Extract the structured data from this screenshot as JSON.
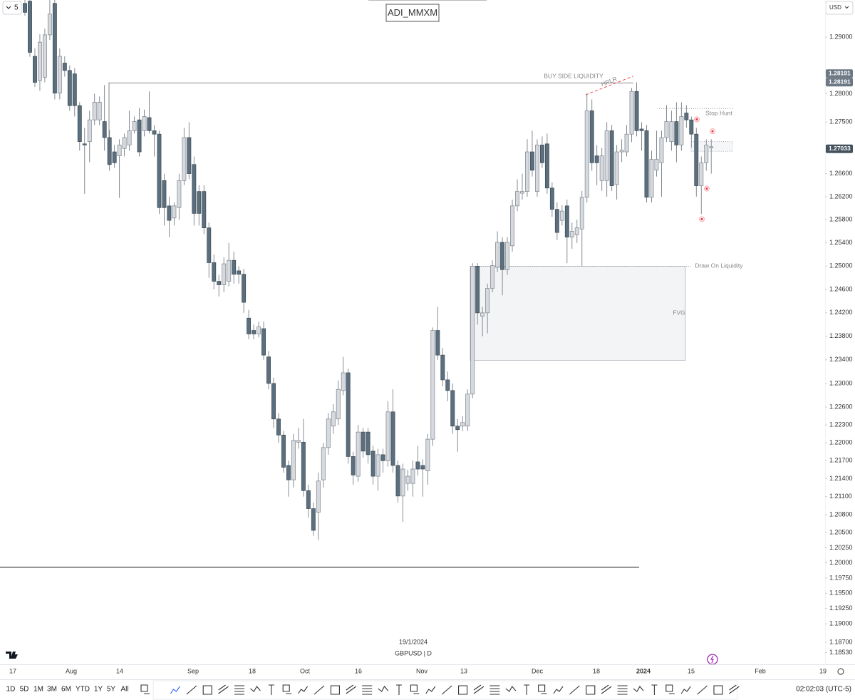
{
  "ui": {
    "interval": "5",
    "title": "ADI_MMXM",
    "currency": "USD",
    "date": "19/1/2024",
    "symbol": "GBPUSD | D",
    "ranges": [
      "1D",
      "5D",
      "1M",
      "3M",
      "6M",
      "YTD",
      "1Y",
      "5Y",
      "All"
    ],
    "clock": "02:02:03 (UTC-5)"
  },
  "chart_data": {
    "type": "candlestick",
    "log": true,
    "ylim": [
      1.1835,
      1.2966
    ],
    "yticks": [
      {
        "value": 1.29,
        "label": "1.29000"
      },
      {
        "value": 1.28,
        "label": "1.28000"
      },
      {
        "value": 1.275,
        "label": "1.27500"
      },
      {
        "value": 1.266,
        "label": "1.26600"
      },
      {
        "value": 1.262,
        "label": "1.26200"
      },
      {
        "value": 1.258,
        "label": "1.25800"
      },
      {
        "value": 1.254,
        "label": "1.25400"
      },
      {
        "value": 1.25,
        "label": "1.25000"
      },
      {
        "value": 1.246,
        "label": "1.24600"
      },
      {
        "value": 1.242,
        "label": "1.24200"
      },
      {
        "value": 1.238,
        "label": "1.23800"
      },
      {
        "value": 1.234,
        "label": "1.23400"
      },
      {
        "value": 1.23,
        "label": "1.23000"
      },
      {
        "value": 1.226,
        "label": "1.22600"
      },
      {
        "value": 1.223,
        "label": "1.22300"
      },
      {
        "value": 1.22,
        "label": "1.22000"
      },
      {
        "value": 1.217,
        "label": "1.21700"
      },
      {
        "value": 1.214,
        "label": "1.21400"
      },
      {
        "value": 1.211,
        "label": "1.21100"
      },
      {
        "value": 1.208,
        "label": "1.20800"
      },
      {
        "value": 1.205,
        "label": "1.20500"
      },
      {
        "value": 1.2025,
        "label": "1.20250"
      },
      {
        "value": 1.2,
        "label": "1.20000"
      },
      {
        "value": 1.1975,
        "label": "1.19750"
      },
      {
        "value": 1.195,
        "label": "1.19500"
      },
      {
        "value": 1.1925,
        "label": "1.19250"
      },
      {
        "value": 1.19,
        "label": "1.19000"
      },
      {
        "value": 1.187,
        "label": "1.18700"
      },
      {
        "value": 1.1853,
        "label": "1.18530"
      }
    ],
    "price_labels": [
      1.28191,
      1.28191,
      1.27033
    ],
    "xlabels": [
      "17",
      "Aug",
      "14",
      "Sep",
      "18",
      "Oct",
      "16",
      "Nov",
      "13",
      "Dec",
      "18",
      "2024",
      "15",
      "Feb",
      "19"
    ],
    "colors": {
      "up": "#d6d9de",
      "down": "#5b6f7e"
    },
    "ohlc": [
      [
        1.296,
        1.2966,
        1.2938,
        1.2944
      ],
      [
        1.2964,
        1.2966,
        1.2865,
        1.2873
      ],
      [
        1.2866,
        1.288,
        1.2812,
        1.282
      ],
      [
        1.2823,
        1.2905,
        1.2805,
        1.2891
      ],
      [
        1.2829,
        1.2915,
        1.282,
        1.2904
      ],
      [
        1.2904,
        1.2966,
        1.2895,
        1.2941
      ],
      [
        1.296,
        1.2966,
        1.279,
        1.2801
      ],
      [
        1.2801,
        1.288,
        1.279,
        1.2866
      ],
      [
        1.2854,
        1.2866,
        1.283,
        1.2841
      ],
      [
        1.2841,
        1.285,
        1.277,
        1.2779
      ],
      [
        1.2835,
        1.2845,
        1.276,
        1.2779
      ],
      [
        1.2779,
        1.2785,
        1.27,
        1.2716
      ],
      [
        1.2712,
        1.274,
        1.2625,
        1.271
      ],
      [
        1.2716,
        1.277,
        1.268,
        1.2754
      ],
      [
        1.2754,
        1.28,
        1.2745,
        1.2785
      ],
      [
        1.2754,
        1.2795,
        1.2745,
        1.2785
      ],
      [
        1.2751,
        1.2815,
        1.27,
        1.2723
      ],
      [
        1.2723,
        1.2736,
        1.2665,
        1.2676
      ],
      [
        1.2698,
        1.271,
        1.267,
        1.2679
      ],
      [
        1.2691,
        1.272,
        1.2618,
        1.271
      ],
      [
        1.2704,
        1.273,
        1.269,
        1.2723
      ],
      [
        1.271,
        1.277,
        1.27,
        1.2735
      ],
      [
        1.2735,
        1.276,
        1.273,
        1.2751
      ],
      [
        1.2754,
        1.2775,
        1.269,
        1.2698
      ],
      [
        1.2735,
        1.2772,
        1.2725,
        1.276
      ],
      [
        1.2758,
        1.2804,
        1.273,
        1.2735
      ],
      [
        1.2735,
        1.2745,
        1.269,
        1.2729
      ],
      [
        1.2729,
        1.2735,
        1.259,
        1.2601
      ],
      [
        1.2648,
        1.266,
        1.257,
        1.2601
      ],
      [
        1.2604,
        1.262,
        1.255,
        1.2579
      ],
      [
        1.2583,
        1.261,
        1.257,
        1.2604
      ],
      [
        1.2601,
        1.266,
        1.258,
        1.2648
      ],
      [
        1.2648,
        1.274,
        1.264,
        1.2723
      ],
      [
        1.2723,
        1.275,
        1.265,
        1.266
      ],
      [
        1.2676,
        1.269,
        1.257,
        1.2591
      ],
      [
        1.2629,
        1.264,
        1.257,
        1.2591
      ],
      [
        1.2629,
        1.264,
        1.2555,
        1.2566
      ],
      [
        1.2566,
        1.2575,
        1.248,
        1.2506
      ],
      [
        1.2506,
        1.252,
        1.246,
        1.2474
      ],
      [
        1.2474,
        1.2485,
        1.2448,
        1.2468
      ],
      [
        1.2468,
        1.2515,
        1.2455,
        1.2504
      ],
      [
        1.2474,
        1.254,
        1.2465,
        1.251
      ],
      [
        1.251,
        1.2525,
        1.247,
        1.2486
      ],
      [
        1.2492,
        1.25,
        1.247,
        1.2486
      ],
      [
        1.2486,
        1.2495,
        1.242,
        1.2438
      ],
      [
        1.2411,
        1.2425,
        1.2375,
        1.2384
      ],
      [
        1.239,
        1.24,
        1.2375,
        1.2384
      ],
      [
        1.2384,
        1.2405,
        1.2378,
        1.2396
      ],
      [
        1.2393,
        1.2405,
        1.234,
        1.2348
      ],
      [
        1.2345,
        1.2355,
        1.229,
        1.23
      ],
      [
        1.23,
        1.231,
        1.2225,
        1.224
      ],
      [
        1.224,
        1.225,
        1.22,
        1.2213
      ],
      [
        1.2213,
        1.222,
        1.215,
        1.2159
      ],
      [
        1.2162,
        1.217,
        1.211,
        1.2138
      ],
      [
        1.2138,
        1.2215,
        1.2125,
        1.2204
      ],
      [
        1.2201,
        1.2225,
        1.219,
        1.2204
      ],
      [
        1.2201,
        1.224,
        1.211,
        1.212
      ],
      [
        1.212,
        1.213,
        1.2075,
        1.209
      ],
      [
        1.209,
        1.21,
        1.2045,
        1.2054
      ],
      [
        1.2084,
        1.215,
        1.2038,
        1.2136
      ],
      [
        1.2138,
        1.22,
        1.2125,
        1.2192
      ],
      [
        1.2192,
        1.225,
        1.218,
        1.224
      ],
      [
        1.2228,
        1.2265,
        1.2215,
        1.2252
      ],
      [
        1.224,
        1.2305,
        1.223,
        1.229
      ],
      [
        1.2288,
        1.2345,
        1.228,
        1.2318
      ],
      [
        1.2318,
        1.2325,
        1.2165,
        1.2177
      ],
      [
        1.2177,
        1.2185,
        1.213,
        1.2146
      ],
      [
        1.2144,
        1.223,
        1.2135,
        1.2218
      ],
      [
        1.2218,
        1.2225,
        1.2175,
        1.2186
      ],
      [
        1.2218,
        1.2225,
        1.2165,
        1.218
      ],
      [
        1.2186,
        1.2195,
        1.213,
        1.2144
      ],
      [
        1.2144,
        1.219,
        1.212,
        1.218
      ],
      [
        1.218,
        1.219,
        1.215,
        1.217
      ],
      [
        1.217,
        1.227,
        1.216,
        1.2252
      ],
      [
        1.2252,
        1.229,
        1.215,
        1.2162
      ],
      [
        1.2162,
        1.217,
        1.21,
        1.2111
      ],
      [
        1.2111,
        1.2165,
        1.2068,
        1.2156
      ],
      [
        1.2132,
        1.2155,
        1.212,
        1.2144
      ],
      [
        1.2132,
        1.217,
        1.211,
        1.2156
      ],
      [
        1.2168,
        1.2195,
        1.2145,
        1.2156
      ],
      [
        1.2162,
        1.2172,
        1.211,
        1.2156
      ],
      [
        1.2153,
        1.2215,
        1.213,
        1.2206
      ],
      [
        1.2206,
        1.2395,
        1.2195,
        1.239
      ],
      [
        1.239,
        1.243,
        1.234,
        1.2348
      ],
      [
        1.2348,
        1.236,
        1.2295,
        1.2306
      ],
      [
        1.2306,
        1.232,
        1.227,
        1.2288
      ],
      [
        1.2288,
        1.23,
        1.2215,
        1.2228
      ],
      [
        1.2228,
        1.224,
        1.2185,
        1.2222
      ],
      [
        1.2228,
        1.2245,
        1.222,
        1.2234
      ],
      [
        1.2228,
        1.229,
        1.222,
        1.2282
      ],
      [
        1.2282,
        1.2505,
        1.2275,
        1.25
      ],
      [
        1.25,
        1.2505,
        1.24,
        1.242
      ],
      [
        1.2414,
        1.243,
        1.238,
        1.242
      ],
      [
        1.242,
        1.247,
        1.2385,
        1.2462
      ],
      [
        1.2462,
        1.251,
        1.2455,
        1.2501
      ],
      [
        1.2498,
        1.256,
        1.249,
        1.2541
      ],
      [
        1.2541,
        1.255,
        1.245,
        1.2494
      ],
      [
        1.2494,
        1.255,
        1.2485,
        1.2541
      ],
      [
        1.2535,
        1.2615,
        1.2525,
        1.2604
      ],
      [
        1.2604,
        1.265,
        1.2595,
        1.2629
      ],
      [
        1.2626,
        1.266,
        1.2615,
        1.2629
      ],
      [
        1.2629,
        1.272,
        1.262,
        1.2698
      ],
      [
        1.2698,
        1.2735,
        1.2655,
        1.2666
      ],
      [
        1.2629,
        1.272,
        1.262,
        1.271
      ],
      [
        1.271,
        1.2725,
        1.267,
        1.2679
      ],
      [
        1.2712,
        1.273,
        1.2625,
        1.2635
      ],
      [
        1.2635,
        1.2645,
        1.2585,
        1.2598
      ],
      [
        1.2598,
        1.261,
        1.2545,
        1.2558
      ],
      [
        1.2579,
        1.2605,
        1.257,
        1.2595
      ],
      [
        1.2604,
        1.2615,
        1.2505,
        1.255
      ],
      [
        1.255,
        1.2575,
        1.253,
        1.256
      ],
      [
        1.2554,
        1.258,
        1.254,
        1.2566
      ],
      [
        1.2564,
        1.263,
        1.25,
        1.2619
      ],
      [
        1.2619,
        1.28,
        1.261,
        1.277
      ],
      [
        1.277,
        1.279,
        1.2665,
        1.2679
      ],
      [
        1.2691,
        1.271,
        1.264,
        1.2679
      ],
      [
        1.2648,
        1.2705,
        1.263,
        1.2691
      ],
      [
        1.2648,
        1.275,
        1.262,
        1.2735
      ],
      [
        1.2735,
        1.2745,
        1.263,
        1.2639
      ],
      [
        1.2641,
        1.271,
        1.2615,
        1.2698
      ],
      [
        1.2698,
        1.272,
        1.268,
        1.2701
      ],
      [
        1.2698,
        1.2745,
        1.269,
        1.2729
      ],
      [
        1.2729,
        1.281,
        1.2715,
        1.2804
      ],
      [
        1.2804,
        1.282,
        1.2725,
        1.2735
      ],
      [
        1.2738,
        1.275,
        1.27,
        1.2735
      ],
      [
        1.2735,
        1.2745,
        1.261,
        1.2619
      ],
      [
        1.2619,
        1.27,
        1.261,
        1.2685
      ],
      [
        1.2666,
        1.2735,
        1.2655,
        1.2685
      ],
      [
        1.2679,
        1.2735,
        1.262,
        1.2723
      ],
      [
        1.2723,
        1.278,
        1.2715,
        1.2751
      ],
      [
        1.2716,
        1.277,
        1.27,
        1.2751
      ],
      [
        1.2751,
        1.2785,
        1.268,
        1.271
      ],
      [
        1.271,
        1.2785,
        1.27,
        1.276
      ],
      [
        1.2766,
        1.278,
        1.274,
        1.2754
      ],
      [
        1.2754,
        1.276,
        1.2705,
        1.2729
      ],
      [
        1.2729,
        1.274,
        1.262,
        1.2639
      ],
      [
        1.2639,
        1.269,
        1.259,
        1.2679
      ],
      [
        1.2679,
        1.272,
        1.2665,
        1.271
      ],
      [
        1.2705,
        1.272,
        1.266,
        1.2707
      ]
    ],
    "annotations": {
      "bsl": {
        "text": "BUY SIDE LIQUIDITY",
        "value": 1.28191
      },
      "hrlr": {
        "text": "HRLR",
        "values": [
          1.2798,
          1.2831
        ]
      },
      "stop_hunt": {
        "text": "Stop Hunt",
        "value": 1.2774
      },
      "dol": {
        "text": "Draw On Liquidity",
        "value": 1.25
      },
      "fvg": {
        "text": "FVG",
        "top": 1.25,
        "bottom": 1.2339
      },
      "range_box": [
        1.2716,
        1.2699
      ],
      "low_line": 1.1993,
      "markers": [
        1.2755,
        1.2734,
        1.2634,
        1.2581
      ]
    }
  }
}
